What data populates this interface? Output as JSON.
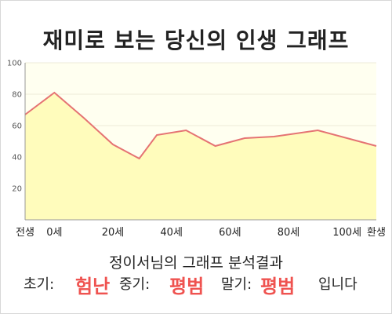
{
  "title": "재미로 보는 당신의 인생 그래프",
  "subtitle": "정이서님의 그래프 분석결과",
  "result": {
    "early_label": "초기:",
    "early_value": "험난",
    "mid_label": "중기:",
    "mid_value": "평범",
    "late_label": "말기:",
    "late_value": "평범",
    "ending": "입니다"
  },
  "colors": {
    "line": "#e57373",
    "fill": "#fffcbc",
    "plot_bg": "#fffff0",
    "highlight": "#ef5350"
  },
  "chart_data": {
    "type": "area",
    "title": "재미로 보는 당신의 인생 그래프",
    "xlabel": "",
    "ylabel": "",
    "ylim": [
      0,
      100
    ],
    "yticks": [
      20,
      40,
      60,
      80,
      100
    ],
    "xlim": [
      -10,
      110
    ],
    "xtick_labels": [
      {
        "x": -10,
        "label": "전생"
      },
      {
        "x": 0,
        "label": "0세"
      },
      {
        "x": 20,
        "label": "20세"
      },
      {
        "x": 40,
        "label": "40세"
      },
      {
        "x": 60,
        "label": "60세"
      },
      {
        "x": 80,
        "label": "80세"
      },
      {
        "x": 100,
        "label": "100세"
      },
      {
        "x": 110,
        "label": "환생"
      }
    ],
    "grid": true,
    "series": [
      {
        "x": [
          -10,
          0,
          10,
          20,
          29,
          35,
          45,
          55,
          65,
          75,
          90,
          110
        ],
        "y": [
          67,
          81,
          65,
          48,
          39,
          54,
          57,
          47,
          52,
          53,
          57,
          47
        ]
      }
    ]
  }
}
